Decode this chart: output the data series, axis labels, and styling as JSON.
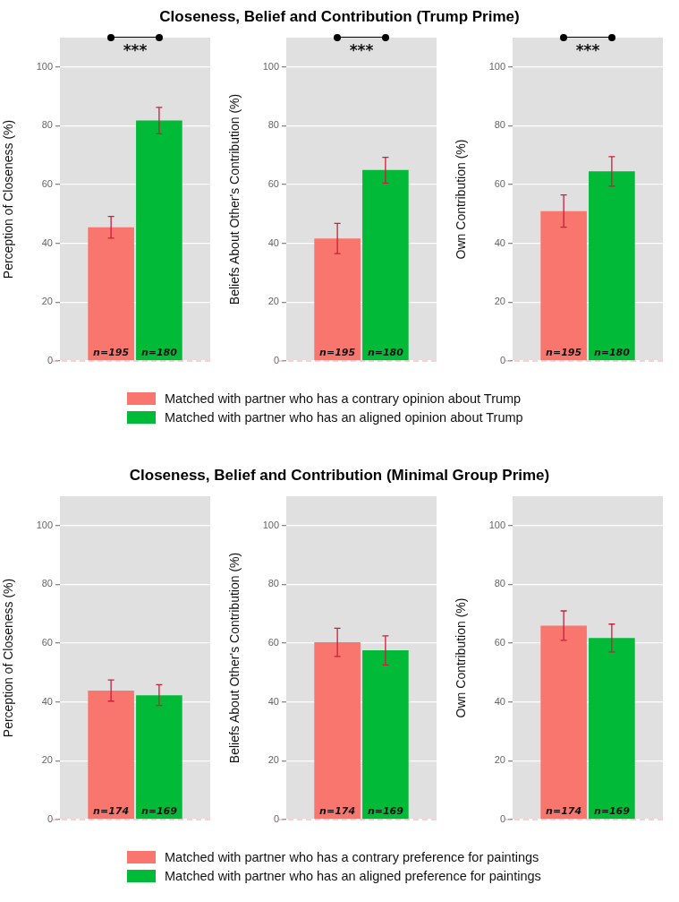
{
  "chart_data": [
    {
      "type": "bar",
      "categories": [
        null
      ],
      "ylabel": "Perception of Closeness (%)",
      "ylim": [
        0,
        110
      ],
      "yticks": [
        0,
        20,
        40,
        60,
        80,
        100
      ],
      "grid": "y",
      "tick_labels": "y",
      "legend": false,
      "series": [
        {
          "color": "#f8766d",
          "values": [
            45.5
          ],
          "errors": [
            [
              41.8,
              49.2
            ]
          ]
        },
        {
          "color": "#00ba38",
          "values": [
            81.8
          ],
          "errors": [
            [
              77.3,
              86.3
            ]
          ]
        }
      ],
      "annotations": [
        "n=195",
        "n=180",
        "***"
      ],
      "ref_lines": [
        {
          "axis": "y",
          "value": 0,
          "color": "#f4a0a8",
          "line_style": "dashed"
        }
      ]
    },
    {
      "type": "bar",
      "title": "Closeness, Belief and Contribution (Trump Prime)",
      "categories": [
        null
      ],
      "ylabel": "Beliefs About Other's Contribution (%)",
      "ylim": [
        0,
        110
      ],
      "yticks": [
        0,
        20,
        40,
        60,
        80,
        100
      ],
      "grid": "y",
      "tick_labels": "y",
      "legend": "bottom",
      "series": [
        {
          "name": "Matched with partner who has a contrary opinion about Trump",
          "color": "#f8766d",
          "values": [
            41.7
          ],
          "errors": [
            [
              36.5,
              46.8
            ]
          ]
        },
        {
          "name": "Matched with partner who has an aligned opinion about Trump",
          "color": "#00ba38",
          "values": [
            65
          ],
          "errors": [
            [
              60.5,
              69.3
            ]
          ]
        }
      ],
      "annotations": [
        "n=195",
        "n=180",
        "***"
      ],
      "ref_lines": [
        {
          "axis": "y",
          "value": 0,
          "color": "#f4a0a8",
          "line_style": "dashed"
        }
      ]
    },
    {
      "type": "bar",
      "categories": [
        null
      ],
      "ylabel": "Own Contribution (%)",
      "ylim": [
        0,
        110
      ],
      "yticks": [
        0,
        20,
        40,
        60,
        80,
        100
      ],
      "grid": "y",
      "tick_labels": "y",
      "legend": false,
      "series": [
        {
          "color": "#f8766d",
          "values": [
            51
          ],
          "errors": [
            [
              45.5,
              56.5
            ]
          ]
        },
        {
          "color": "#00ba38",
          "values": [
            64.5
          ],
          "errors": [
            [
              59.5,
              69.5
            ]
          ]
        }
      ],
      "annotations": [
        "n=195",
        "n=180",
        "***"
      ],
      "ref_lines": [
        {
          "axis": "y",
          "value": 0,
          "color": "#f4a0a8",
          "line_style": "dashed"
        }
      ]
    },
    {
      "type": "bar",
      "categories": [
        null
      ],
      "ylabel": "Perception of Closeness (%)",
      "ylim": [
        0,
        110
      ],
      "yticks": [
        0,
        20,
        40,
        60,
        80,
        100
      ],
      "grid": "y",
      "tick_labels": "y",
      "legend": false,
      "series": [
        {
          "color": "#f8766d",
          "values": [
            43.9
          ],
          "errors": [
            [
              40.3,
              47.5
            ]
          ]
        },
        {
          "color": "#00ba38",
          "values": [
            42.3
          ],
          "errors": [
            [
              38.8,
              45.9
            ]
          ]
        }
      ],
      "annotations": [
        "n=174",
        "n=169"
      ],
      "ref_lines": [
        {
          "axis": "y",
          "value": 0,
          "color": "#f4a0a8",
          "line_style": "dashed"
        }
      ]
    },
    {
      "type": "bar",
      "title": "Closeness, Belief and Contribution (Minimal Group Prime)",
      "categories": [
        null
      ],
      "ylabel": "Beliefs About Other's Contribution (%)",
      "ylim": [
        0,
        110
      ],
      "yticks": [
        0,
        20,
        40,
        60,
        80,
        100
      ],
      "grid": "y",
      "tick_labels": "y",
      "legend": "bottom",
      "series": [
        {
          "name": "Matched with partner who has a contrary preference for paintings",
          "color": "#f8766d",
          "values": [
            60.3
          ],
          "errors": [
            [
              55.5,
              65.1
            ]
          ]
        },
        {
          "name": "Matched with partner who has an aligned preference for paintings",
          "color": "#00ba38",
          "values": [
            57.6
          ],
          "errors": [
            [
              52.6,
              62.5
            ]
          ]
        }
      ],
      "annotations": [
        "n=174",
        "n=169"
      ],
      "ref_lines": [
        {
          "axis": "y",
          "value": 0,
          "color": "#f4a0a8",
          "line_style": "dashed"
        }
      ]
    },
    {
      "type": "bar",
      "categories": [
        null
      ],
      "ylabel": "Own Contribution (%)",
      "ylim": [
        0,
        110
      ],
      "yticks": [
        0,
        20,
        40,
        60,
        80,
        100
      ],
      "grid": "y",
      "tick_labels": "y",
      "legend": false,
      "series": [
        {
          "color": "#f8766d",
          "values": [
            66
          ],
          "errors": [
            [
              61,
              71
            ]
          ]
        },
        {
          "color": "#00ba38",
          "values": [
            61.8
          ],
          "errors": [
            [
              57,
              66.5
            ]
          ]
        }
      ],
      "annotations": [
        "n=174",
        "n=169"
      ],
      "ref_lines": [
        {
          "axis": "y",
          "value": 0,
          "color": "#f4a0a8",
          "line_style": "dashed"
        }
      ]
    }
  ]
}
